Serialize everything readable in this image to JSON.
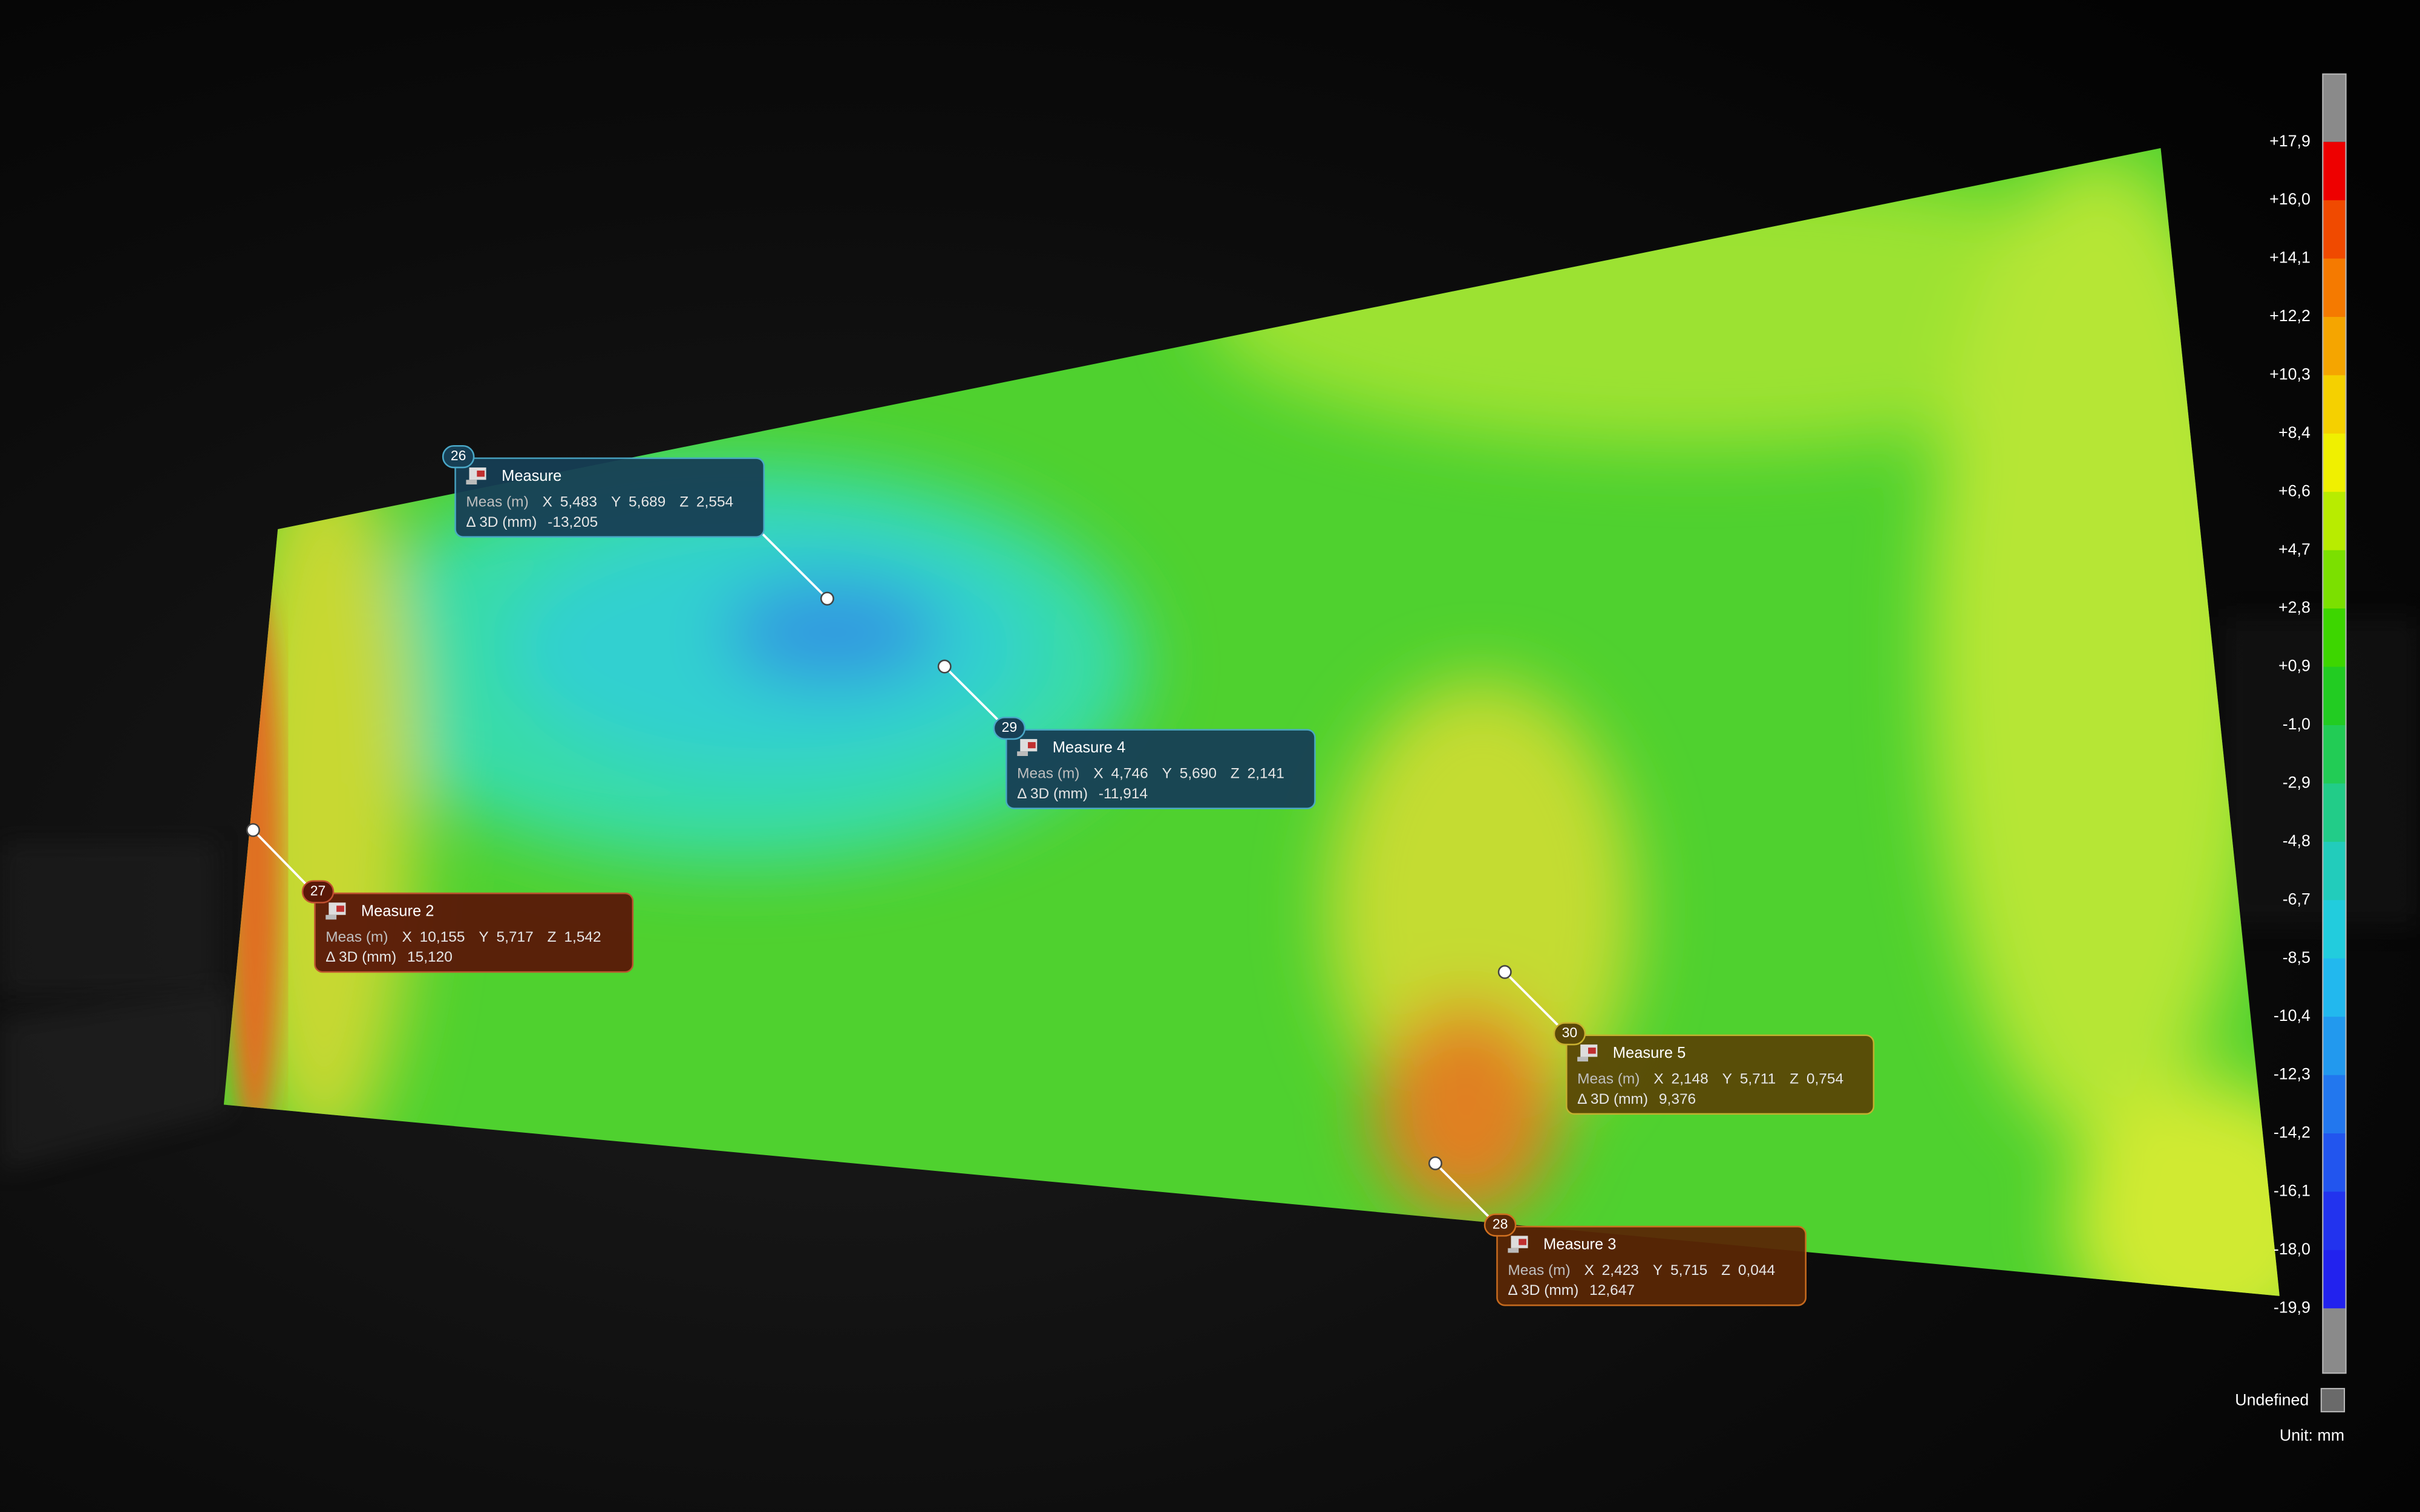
{
  "callouts": [
    {
      "number": "26",
      "title": "Measure",
      "meas_label": "Meas (m)",
      "x_label": "X",
      "x": "5,483",
      "y_label": "Y",
      "y": "5,689",
      "z_label": "Z",
      "z": "2,554",
      "delta_label": "Δ 3D (mm)",
      "delta": "-13,205"
    },
    {
      "number": "29",
      "title": "Measure 4",
      "meas_label": "Meas (m)",
      "x_label": "X",
      "x": "4,746",
      "y_label": "Y",
      "y": "5,690",
      "z_label": "Z",
      "z": "2,141",
      "delta_label": "Δ 3D (mm)",
      "delta": "-11,914"
    },
    {
      "number": "27",
      "title": "Measure 2",
      "meas_label": "Meas (m)",
      "x_label": "X",
      "x": "10,155",
      "y_label": "Y",
      "y": "5,717",
      "z_label": "Z",
      "z": "1,542",
      "delta_label": "Δ 3D (mm)",
      "delta": "15,120"
    },
    {
      "number": "30",
      "title": "Measure 5",
      "meas_label": "Meas (m)",
      "x_label": "X",
      "x": "2,148",
      "y_label": "Y",
      "y": "5,711",
      "z_label": "Z",
      "z": "0,754",
      "delta_label": "Δ 3D (mm)",
      "delta": "9,376"
    },
    {
      "number": "28",
      "title": "Measure 3",
      "meas_label": "Meas (m)",
      "x_label": "X",
      "x": "2,423",
      "y_label": "Y",
      "y": "5,715",
      "z_label": "Z",
      "z": "0,044",
      "delta_label": "Δ 3D (mm)",
      "delta": "12,647"
    }
  ],
  "color_scale": {
    "labels": [
      "+17,9",
      "+16,0",
      "+14,1",
      "+12,2",
      "+10,3",
      "+8,4",
      "+6,6",
      "+4,7",
      "+2,8",
      "+0,9",
      "-1,0",
      "-2,9",
      "-4,8",
      "-6,7",
      "-8,5",
      "-10,4",
      "-12,3",
      "-14,2",
      "-16,1",
      "-18,0",
      "-19,9"
    ],
    "undefined_label": "Undefined",
    "unit": "Unit: mm"
  }
}
